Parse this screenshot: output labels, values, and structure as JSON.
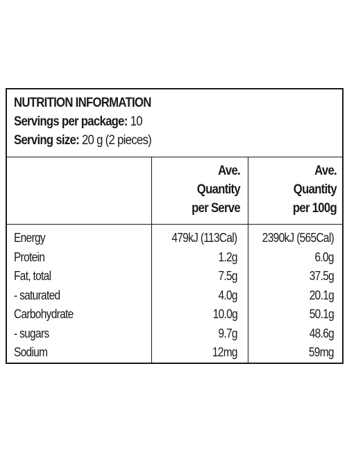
{
  "header": {
    "title": "NUTRITION INFORMATION",
    "servings_label": "Servings per package:",
    "servings_value": "10",
    "size_label": "Serving size:",
    "size_value": "20 g (2 pieces)"
  },
  "columns": {
    "serve": [
      "Ave.",
      "Quantity",
      "per Serve"
    ],
    "per100": [
      "Ave.",
      "Quantity",
      "per 100g"
    ]
  },
  "rows": [
    {
      "nutrient": "Energy",
      "per_serve": "479kJ (113Cal)",
      "per_100g": "2390kJ (565Cal)"
    },
    {
      "nutrient": "Protein",
      "per_serve": "1.2g",
      "per_100g": "6.0g"
    },
    {
      "nutrient": "Fat, total",
      "per_serve": "7.5g",
      "per_100g": "37.5g"
    },
    {
      "nutrient": "- saturated",
      "per_serve": "4.0g",
      "per_100g": "20.1g"
    },
    {
      "nutrient": "Carbohydrate",
      "per_serve": "10.0g",
      "per_100g": "50.1g"
    },
    {
      "nutrient": "- sugars",
      "per_serve": "9.7g",
      "per_100g": "48.6g"
    },
    {
      "nutrient": "Sodium",
      "per_serve": "12mg",
      "per_100g": "59mg"
    }
  ]
}
